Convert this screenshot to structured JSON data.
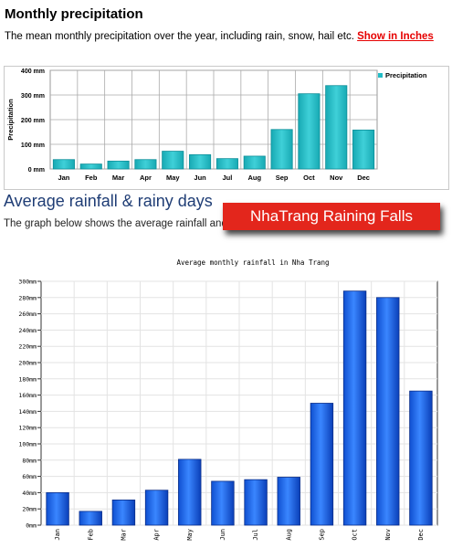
{
  "section1": {
    "title": "Monthly precipitation",
    "description": "The mean monthly precipitation over the year, including rain, snow, hail etc.",
    "link_label": "Show in Inches",
    "link_color": "#e60000"
  },
  "section2": {
    "title": "Average rainfall & rainy days",
    "description": "The graph below shows the average rainfall and n"
  },
  "overlay_banner": {
    "text": "NhaTrang Raining Falls",
    "color": "#e3261c"
  },
  "chart_data": [
    {
      "type": "bar",
      "ylabel": "Precipitation",
      "legend": [
        "Precipitation"
      ],
      "legend_position": "top-right",
      "categories": [
        "Jan",
        "Feb",
        "Mar",
        "Apr",
        "May",
        "Jun",
        "Jul",
        "Aug",
        "Sep",
        "Oct",
        "Nov",
        "Dec"
      ],
      "values": [
        38,
        20,
        32,
        38,
        72,
        58,
        42,
        52,
        160,
        305,
        338,
        158
      ],
      "ylim": [
        0,
        400
      ],
      "yticks": [
        "0 mm",
        "100 mm",
        "200 mm",
        "300 mm",
        "400 mm"
      ],
      "grid": true,
      "bar_color": "#22bcc6"
    },
    {
      "type": "bar",
      "title": "Average monthly rainfall in Nha Trang",
      "categories": [
        "Jan",
        "Feb",
        "Mar",
        "Apr",
        "May",
        "Jun",
        "Jul",
        "Aug",
        "Sep",
        "Oct",
        "Nov",
        "Dec"
      ],
      "values": [
        40,
        17,
        31,
        43,
        81,
        54,
        56,
        59,
        150,
        288,
        280,
        165
      ],
      "ylim": [
        0,
        300
      ],
      "yticks": [
        "0mm",
        "20mm",
        "40mm",
        "60mm",
        "80mm",
        "100mm",
        "120mm",
        "140mm",
        "160mm",
        "180mm",
        "200mm",
        "220mm",
        "240mm",
        "260mm",
        "280mm",
        "300mm"
      ],
      "grid": true,
      "bar_color": "#1a63e8"
    }
  ]
}
